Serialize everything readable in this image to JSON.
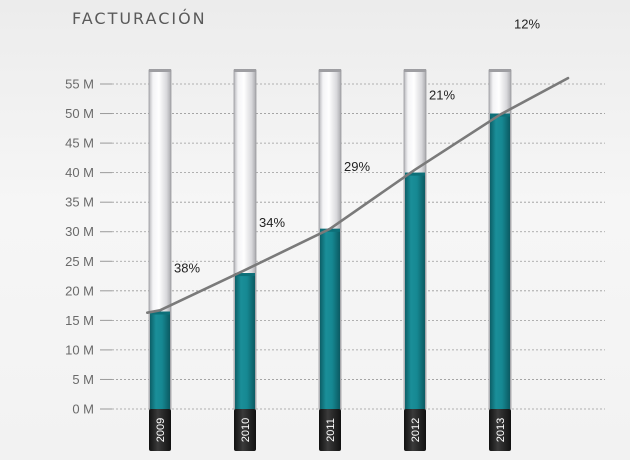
{
  "chart_data": {
    "type": "bar",
    "title": "FACTURACIÓN",
    "categories": [
      "2009",
      "2010",
      "2011",
      "2012",
      "2013"
    ],
    "values": [
      16.5,
      23,
      30.5,
      40,
      50
    ],
    "ylim": [
      0,
      55
    ],
    "yticks": [
      0,
      5,
      10,
      15,
      20,
      25,
      30,
      35,
      40,
      45,
      50,
      55
    ],
    "ytick_suffix": " M",
    "growth_labels": [
      "38%",
      "34%",
      "29%",
      "21%",
      "12%"
    ],
    "trend_line": {
      "x": [
        -0.15,
        0.0,
        1.0,
        2.0,
        3.0,
        4.0,
        4.8
      ],
      "y": [
        16.3,
        16.7,
        23.5,
        30.5,
        40.5,
        49.8,
        56.0
      ]
    },
    "grid": true,
    "colors": {
      "bar": "#1a8791",
      "bar_dark": "#0f6b74",
      "tube": "#e0e0e2",
      "trend": "#7a7a7a",
      "grid": "#9a9a9a",
      "tick_text": "#6a6a6a",
      "base": "#2b2b2b"
    }
  }
}
